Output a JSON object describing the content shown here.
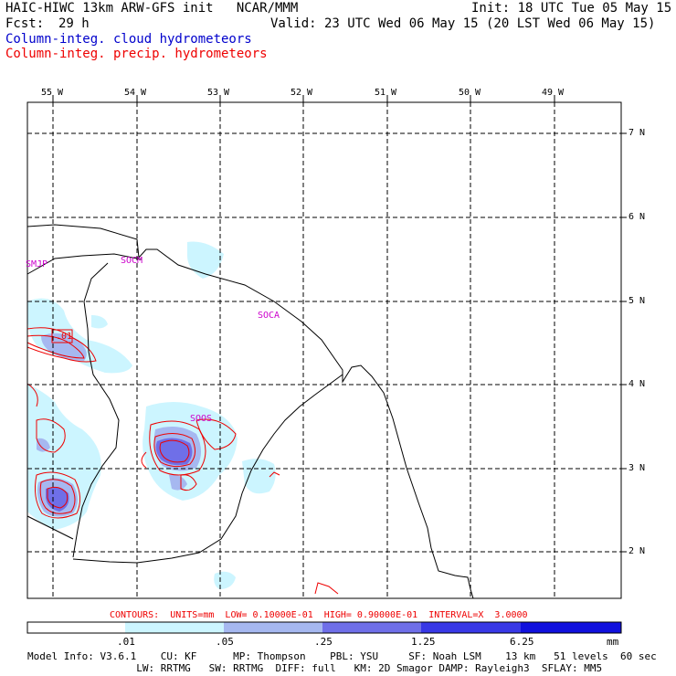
{
  "header": {
    "title_left": "HAIC-HIWC 13km ARW-GFS init   NCAR/MMM",
    "init": "Init: 18 UTC Tue 05 May 15",
    "fcst_label": "Fcst:",
    "fcst_value": "29 h",
    "valid": "Valid: 23 UTC Wed 06 May 15 (20 LST Wed 06 May 15)",
    "field1": "Column-integ. cloud hydrometeors",
    "field2": "Column-integ. precip. hydrometeors",
    "field1_color": "#0000cc",
    "field2_color": "#ee0000"
  },
  "map": {
    "lon_labels": [
      "55 W",
      "54 W",
      "53 W",
      "52 W",
      "51 W",
      "50 W",
      "49 W"
    ],
    "lat_labels": [
      "7 N",
      "6 N",
      "5 N",
      "4 N",
      "3 N",
      "2 N"
    ],
    "stations": [
      "SMJP",
      "SOCM",
      "SOCA",
      "SOOS"
    ],
    "contour_label": ".01"
  },
  "contours_info": "CONTOURS:  UNITS=mm  LOW= 0.10000E-01  HIGH= 0.90000E-01  INTERVAL=X  3.0000",
  "colorbar": {
    "labels": [
      ".01",
      ".05",
      ".25",
      "1.25",
      "6.25"
    ],
    "units": "mm",
    "colors": [
      "#ffffff",
      "#ccf5ff",
      "#a6b8f0",
      "#6f6fe8",
      "#3838e6",
      "#1010dd"
    ]
  },
  "model_info": {
    "line1": "Model Info: V3.6.1    CU: KF      MP: Thompson    PBL: YSU     SF: Noah LSM    13 km   51 levels  60 sec",
    "line2": "                  LW: RRTMG   SW: RRTMG  DIFF: full   KM: 2D Smagor DAMP: Rayleigh3  SFLAY: MM5"
  }
}
